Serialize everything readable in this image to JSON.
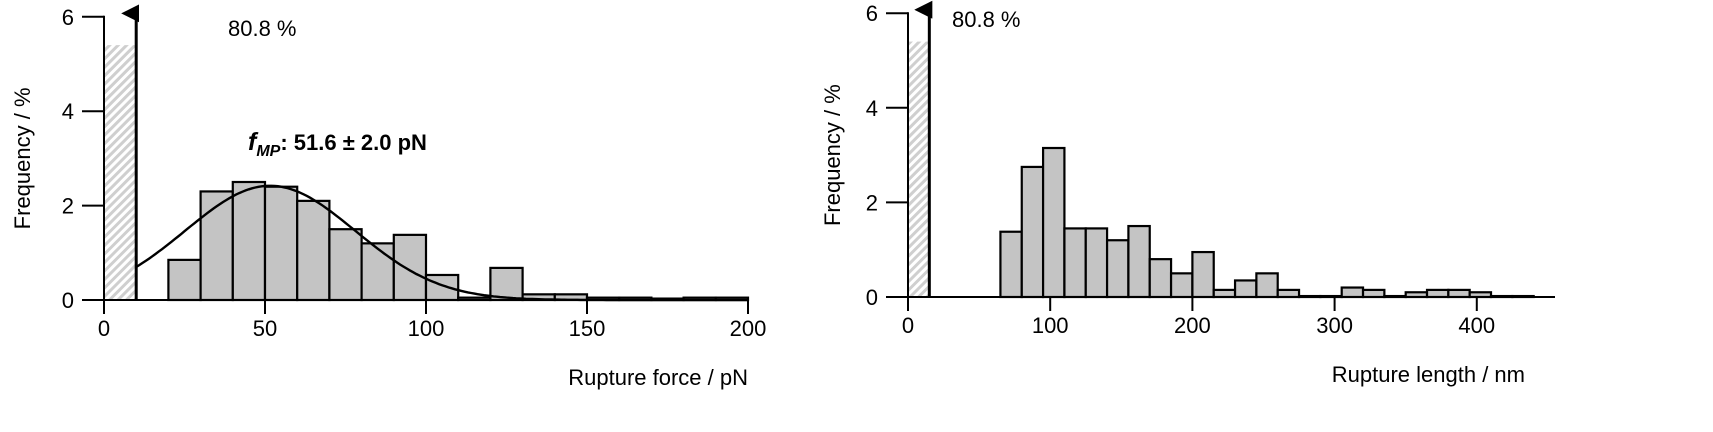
{
  "chart_data": [
    {
      "type": "bar",
      "xlabel": "Rupture force / pN",
      "ylabel": "Frequency / %",
      "xlim": [
        0,
        200
      ],
      "ylim": [
        0,
        6
      ],
      "xticks": [
        "0",
        "50",
        "100",
        "150",
        "200"
      ],
      "yticks": [
        "0",
        "2",
        "4",
        "6"
      ],
      "bin_width": 10,
      "truncated_bar": {
        "x": 0,
        "value": 80.8,
        "label": "80.8 %"
      },
      "bins_start": [
        20,
        30,
        40,
        50,
        60,
        70,
        80,
        90,
        100,
        110,
        120,
        130,
        140,
        150,
        160,
        170,
        180,
        190
      ],
      "values": [
        0.85,
        2.3,
        2.5,
        2.4,
        2.1,
        1.5,
        1.2,
        1.38,
        0.53,
        0.05,
        0.68,
        0.12,
        0.12,
        0.05,
        0.05,
        0.03,
        0.05,
        0.05
      ],
      "fit": {
        "type": "gaussian",
        "mean": 51.6,
        "sigma": 26.4,
        "peak": 2.42
      },
      "annotation": {
        "symbol": "f",
        "subscript": "MP",
        "text": ": 51.6 ± 2.0 pN"
      },
      "grid": false,
      "colors": {
        "bar": "#c4c4c4",
        "hatch": "#cfcfcf",
        "edge": "#000000"
      }
    },
    {
      "type": "bar",
      "xlabel": "Rupture length / nm",
      "ylabel": "Frequency / %",
      "xlim": [
        0,
        455
      ],
      "ylim": [
        0,
        6
      ],
      "xticks": [
        "0",
        "100",
        "200",
        "300",
        "400"
      ],
      "yticks": [
        "0",
        "2",
        "4",
        "6"
      ],
      "bin_width": 15,
      "truncated_bar": {
        "x": 0,
        "value": 80.8,
        "label": "80.8 %"
      },
      "bins_start": [
        65,
        80,
        95,
        110,
        125,
        140,
        155,
        170,
        185,
        200,
        215,
        230,
        245,
        260,
        275,
        290,
        305,
        320,
        335,
        350,
        365,
        380,
        395,
        410,
        425
      ],
      "values": [
        1.38,
        2.75,
        3.15,
        1.45,
        1.45,
        1.2,
        1.5,
        0.8,
        0.5,
        0.95,
        0.15,
        0.35,
        0.5,
        0.15,
        0.02,
        0.02,
        0.2,
        0.15,
        0.02,
        0.1,
        0.15,
        0.15,
        0.1,
        0.02,
        0.02
      ],
      "grid": false,
      "colors": {
        "bar": "#c4c4c4",
        "hatch": "#cfcfcf",
        "edge": "#000000"
      }
    }
  ]
}
